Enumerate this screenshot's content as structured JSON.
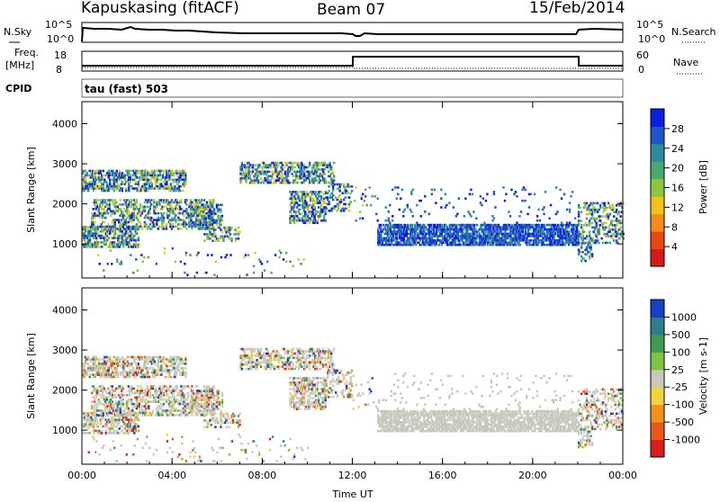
{
  "header": {
    "station": "Kapuskasing (fitACF)",
    "beam": "Beam 07",
    "date": "15/Feb/2014"
  },
  "top_panels": {
    "nsky_label": "N.Sky",
    "nsky_ticks": [
      "10^5",
      "10^0"
    ],
    "nsearch_label": "N.Search",
    "nsearch_ticks": [
      "10^5",
      "10^0"
    ],
    "freq_label": "Freq.",
    "freq_unit": "[MHz]",
    "freq_ticks": [
      "18",
      "8"
    ],
    "nave_label": "Nave",
    "nave_ticks": [
      "60",
      "0"
    ],
    "cpid_label": "CPID",
    "cpid_text": "tau (fast) 503"
  },
  "chart_data": [
    {
      "type": "heatmap",
      "name": "power",
      "ylabel": "Slant Range [km]",
      "ylim": [
        150,
        4550
      ],
      "yticks": [
        "4000",
        "3000",
        "2000",
        "1000"
      ],
      "ytick_values": [
        4000,
        3000,
        2000,
        1000
      ],
      "xlim": [
        0,
        24
      ],
      "xticks": [
        "00:00",
        "04:00",
        "08:00",
        "12:00",
        "16:00",
        "20:00",
        "00:00"
      ],
      "xtick_values": [
        0,
        4,
        8,
        12,
        16,
        20,
        24
      ],
      "colorbar_label": "Power [dB]",
      "colorbar_ticks": [
        "28",
        "24",
        "20",
        "16",
        "12",
        "8",
        "4"
      ],
      "colorbar_colors": [
        "#0b1fe0",
        "#1f55c6",
        "#2d8a9d",
        "#4aa870",
        "#8cc63f",
        "#f2c21b",
        "#f58a1f",
        "#e84a14",
        "#d71a1a"
      ]
    },
    {
      "type": "heatmap",
      "name": "velocity",
      "ylabel": "Slant Range [km]",
      "ylim": [
        150,
        4550
      ],
      "yticks": [
        "4000",
        "3000",
        "2000",
        "1000"
      ],
      "ytick_values": [
        4000,
        3000,
        2000,
        1000
      ],
      "xlim": [
        0,
        24
      ],
      "xticks": [
        "00:00",
        "04:00",
        "08:00",
        "12:00",
        "16:00",
        "20:00",
        "00:00"
      ],
      "xtick_values": [
        0,
        4,
        8,
        12,
        16,
        20,
        24
      ],
      "xlabel": "Time UT",
      "colorbar_label": "Velocity [m s-1]",
      "colorbar_ticks": [
        "1000",
        "500",
        "100",
        "25",
        "-25",
        "-100",
        "-500",
        "-1000"
      ],
      "colorbar_colors": [
        "#1640c0",
        "#2c7f8a",
        "#3f9c4e",
        "#7fc341",
        "#c8c8bf",
        "#f2d33a",
        "#f2921e",
        "#e8571a",
        "#d81e1e"
      ]
    }
  ],
  "frame_color": "#000000"
}
